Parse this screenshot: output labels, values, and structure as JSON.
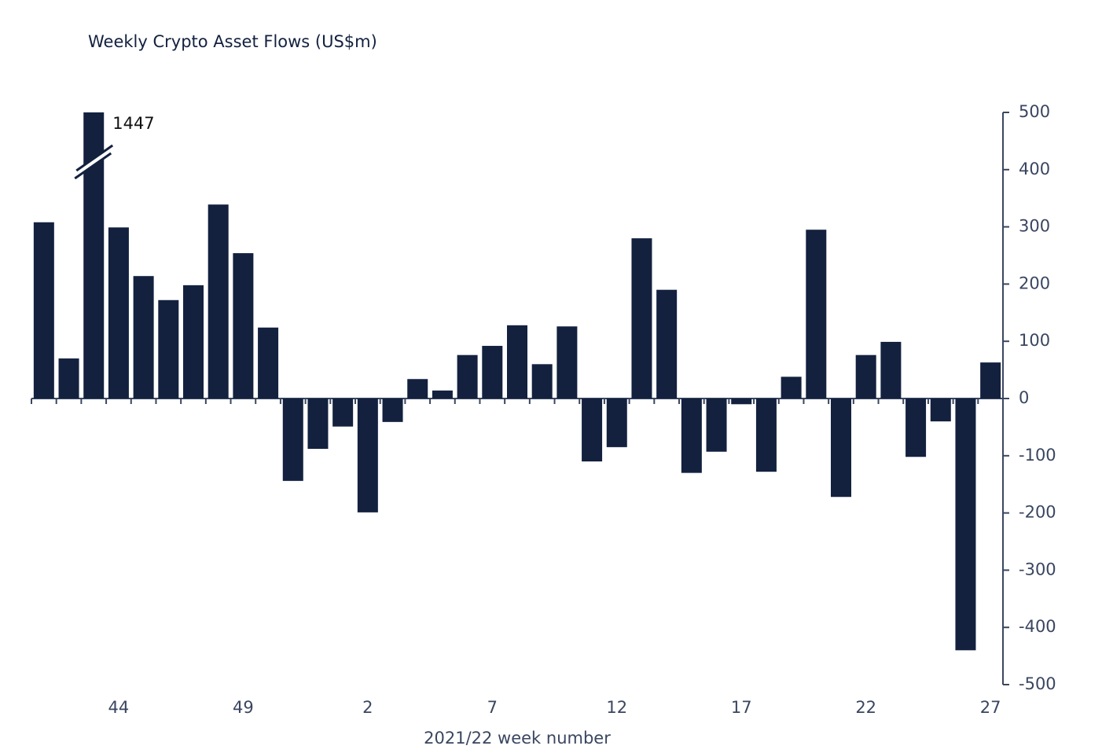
{
  "chart_data": {
    "type": "bar",
    "title": "Weekly Crypto Asset Flows (US$m)",
    "x_label": "2021/22 week number",
    "categories": [
      null,
      null,
      null,
      "44",
      null,
      null,
      null,
      null,
      "49",
      null,
      null,
      null,
      null,
      "2",
      null,
      null,
      null,
      null,
      "7",
      null,
      null,
      null,
      null,
      "12",
      null,
      null,
      null,
      null,
      "17",
      null,
      null,
      null,
      null,
      "22",
      null,
      null,
      null,
      null,
      "27"
    ],
    "values": [
      308,
      70,
      1447,
      299,
      214,
      172,
      198,
      339,
      254,
      124,
      -144,
      -88,
      -49,
      -199,
      -41,
      34,
      14,
      76,
      92,
      128,
      60,
      126,
      -110,
      -85,
      280,
      190,
      -130,
      -93,
      -10,
      -128,
      38,
      295,
      -172,
      76,
      99,
      -102,
      -40,
      -440,
      63
    ],
    "color": "#13213f",
    "ylim": [
      -500,
      500
    ],
    "yticks": [
      500,
      400,
      300,
      200,
      100,
      0,
      -100,
      -200,
      -300,
      -400,
      -500
    ],
    "y_axis_side": "right"
  }
}
